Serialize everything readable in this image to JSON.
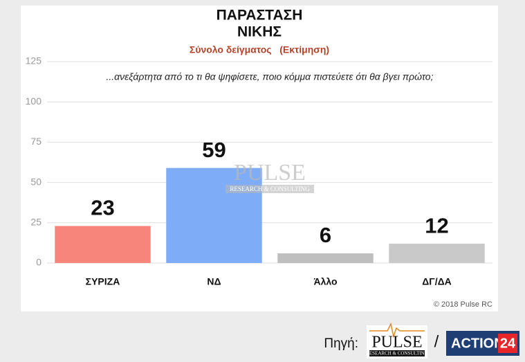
{
  "chart_data": {
    "type": "bar",
    "title": [
      "ΠΑΡΑΣΤΑΣΗ",
      "ΝΙΚΗΣ"
    ],
    "subtitle": "Σύνολο δείγματος   (Εκτίμηση)",
    "annotation": "...ανεξάρτητα από το τι θα ψηφίσετε, ποιο κόμμα πιστεύετε ότι θα βγει πρώτο;",
    "categories": [
      "ΣΥΡΙΖΑ",
      "ΝΔ",
      "Άλλο",
      "ΔΓ/ΔΑ"
    ],
    "values": [
      23,
      59,
      6,
      12
    ],
    "colors": [
      "#f8857c",
      "#7eacf7",
      "#bfbfbf",
      "#c9c9c9"
    ],
    "ylim": [
      0,
      125
    ],
    "yticks": [
      0,
      25,
      50,
      75,
      100,
      125
    ],
    "grid": true,
    "watermark": [
      "PULSE",
      "RESEARCH & CONSULTING"
    ],
    "copyright": "© 2018 Pulse RC"
  },
  "footer": {
    "source_label": "Πηγή:",
    "logo_pulse": "PULSE",
    "logo_pulse_sub": "RESEARCH & CONSULTING",
    "separator": "/",
    "logo_action": "ACTION",
    "logo_action_num": "24"
  }
}
